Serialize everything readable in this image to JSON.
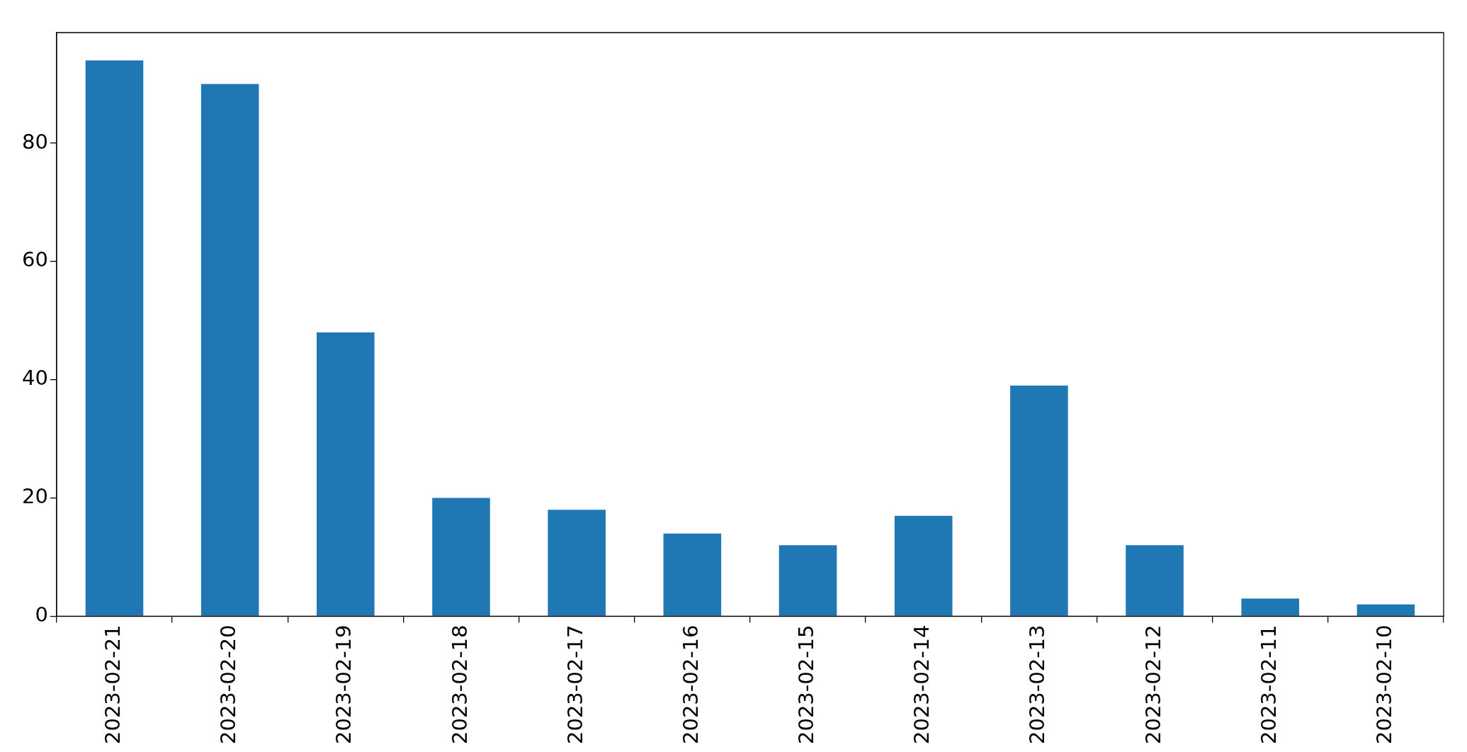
{
  "chart_data": {
    "type": "bar",
    "categories": [
      "2023-02-21",
      "2023-02-20",
      "2023-02-19",
      "2023-02-18",
      "2023-02-17",
      "2023-02-16",
      "2023-02-15",
      "2023-02-14",
      "2023-02-13",
      "2023-02-12",
      "2023-02-11",
      "2023-02-10"
    ],
    "values": [
      94,
      90,
      48,
      20,
      18,
      14,
      12,
      17,
      39,
      12,
      3,
      2
    ],
    "color": "#1f77b4",
    "ylim": [
      0,
      98.7
    ],
    "yticks": [
      0,
      20,
      40,
      60,
      80
    ],
    "grid": false,
    "legend": false
  }
}
